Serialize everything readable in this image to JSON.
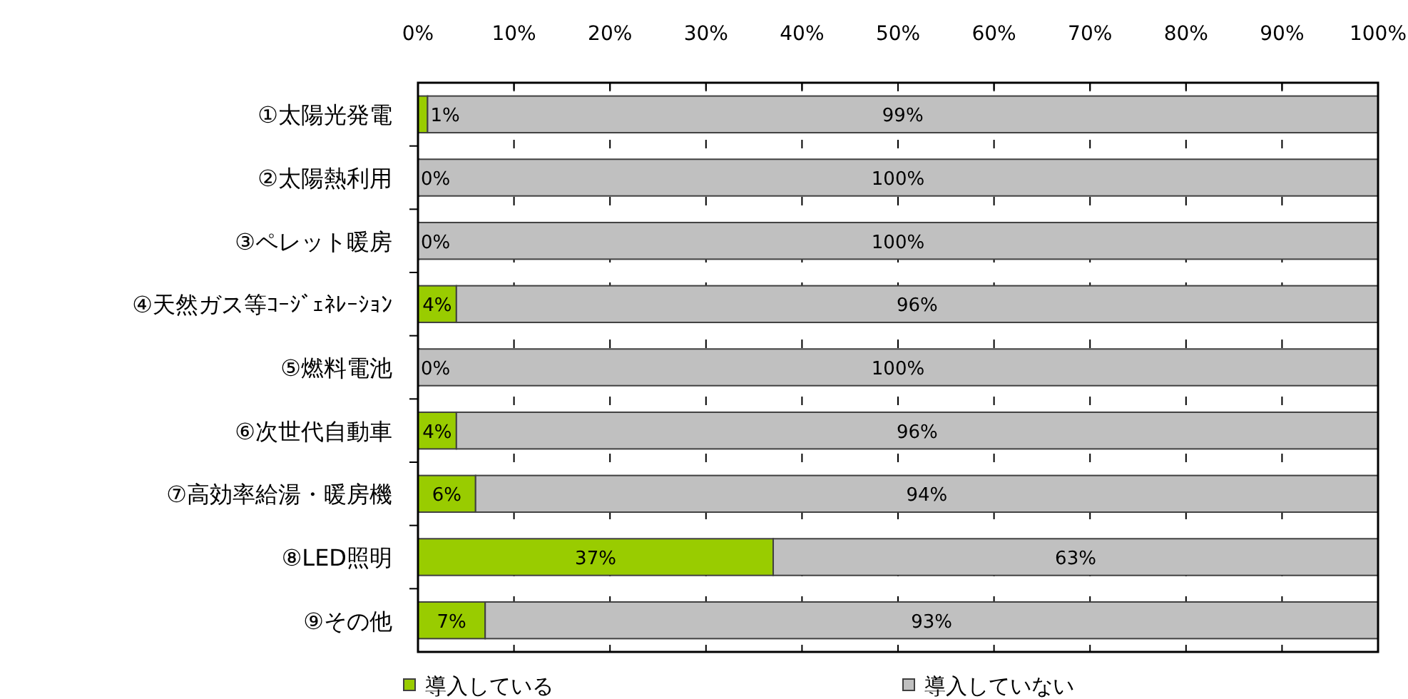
{
  "chart_data": {
    "type": "bar",
    "orientation": "horizontal",
    "stacked": true,
    "categories": [
      "①太陽光発電",
      "②太陽熱利用",
      "③ペレット暖房",
      "④天然ガス等ｺｰｼﾞｪﾈﾚｰｼｮﾝ",
      "⑤燃料電池",
      "⑥次世代自動車",
      "⑦高効率給湯・暖房機",
      "⑧LED照明",
      "⑨その他"
    ],
    "series": [
      {
        "name": "導入している",
        "color": "#99cc00",
        "values": [
          1,
          0,
          0,
          4,
          0,
          4,
          6,
          37,
          7
        ],
        "value_labels": [
          "1%",
          "0%",
          "0%",
          "4%",
          "0%",
          "4%",
          "6%",
          "37%",
          "7%"
        ]
      },
      {
        "name": "導入していない",
        "color": "#c0c0c0",
        "values": [
          99,
          100,
          100,
          96,
          100,
          96,
          94,
          63,
          93
        ],
        "value_labels": [
          "99%",
          "100%",
          "100%",
          "96%",
          "100%",
          "96%",
          "94%",
          "63%",
          "93%"
        ]
      }
    ],
    "xlim": [
      0,
      100
    ],
    "xticks": [
      {
        "value": 0,
        "label": "0%"
      },
      {
        "value": 10,
        "label": "10%"
      },
      {
        "value": 20,
        "label": "20%"
      },
      {
        "value": 30,
        "label": "30%"
      },
      {
        "value": 40,
        "label": "40%"
      },
      {
        "value": 50,
        "label": "50%"
      },
      {
        "value": 60,
        "label": "60%"
      },
      {
        "value": 70,
        "label": "70%"
      },
      {
        "value": 80,
        "label": "80%"
      },
      {
        "value": 90,
        "label": "90%"
      },
      {
        "value": 100,
        "label": "100%"
      }
    ],
    "grid": "x",
    "legend": "bottom"
  }
}
